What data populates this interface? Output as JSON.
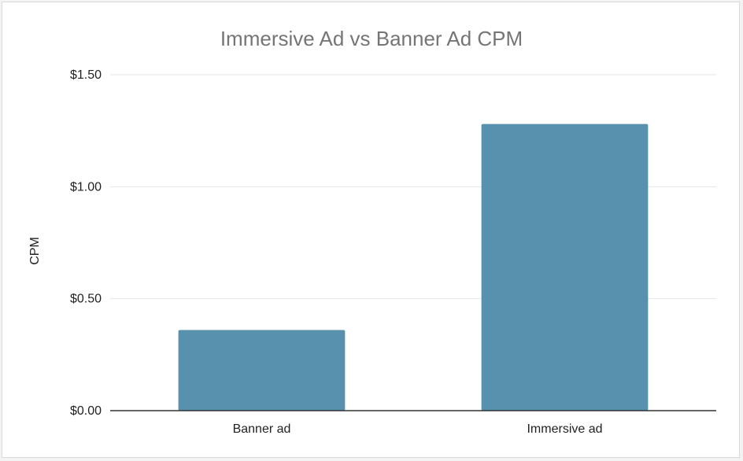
{
  "chart_data": {
    "type": "bar",
    "title": "Immersive Ad vs Banner Ad CPM",
    "xlabel": "",
    "ylabel": "CPM",
    "categories": [
      "Banner ad",
      "Immersive ad"
    ],
    "values": [
      0.36,
      1.28
    ],
    "ylim": [
      0,
      1.5
    ],
    "yticks": [
      0,
      0.5,
      1.0,
      1.5
    ],
    "ytick_labels": [
      "$0.00",
      "$0.50",
      "$1.00",
      "$1.50"
    ],
    "bar_color": "#5891ae",
    "grid": true,
    "legend": "none"
  }
}
